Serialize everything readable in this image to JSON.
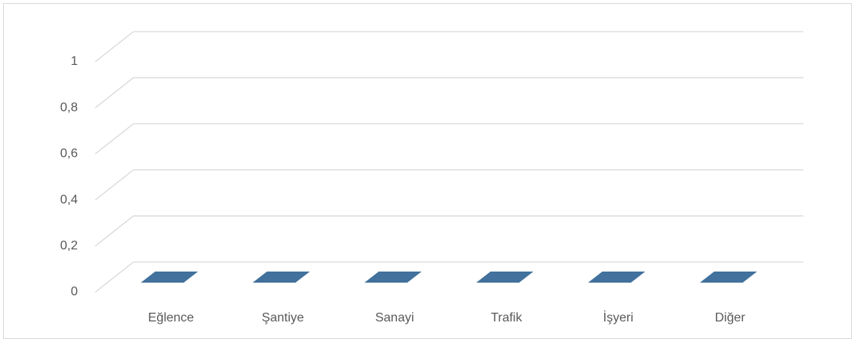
{
  "chart_data": {
    "type": "bar3d",
    "categories": [
      "Eğlence",
      "Şantiye",
      "Sanayi",
      "Trafik",
      "İşyeri",
      "Diğer"
    ],
    "values": [
      0,
      0,
      0,
      0,
      0,
      0
    ],
    "color": "#41719c",
    "ylim": [
      0,
      1
    ],
    "yticks": [
      0,
      {
        "value": 0.2,
        "label": "0,2"
      },
      {
        "value": 0.4,
        "label": "0,4"
      },
      {
        "value": 0.6,
        "label": "0,6"
      },
      {
        "value": 0.8,
        "label": "0,8"
      },
      1
    ],
    "grid": true
  }
}
